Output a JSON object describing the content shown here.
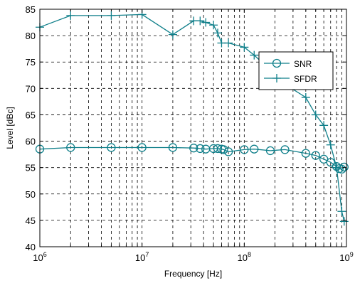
{
  "chart_data": {
    "type": "line",
    "xlabel": "Frequency [Hz]",
    "ylabel": "Level [dBc]",
    "x_scale": "log",
    "xlim": [
      1000000,
      1000000000
    ],
    "ylim": [
      40,
      85
    ],
    "grid": true,
    "legend_position": "top-right",
    "x_ticks": [
      {
        "value": 1000000,
        "base": "10",
        "exp": "6"
      },
      {
        "value": 10000000,
        "base": "10",
        "exp": "7"
      },
      {
        "value": 100000000,
        "base": "10",
        "exp": "8"
      },
      {
        "value": 1000000000,
        "base": "10",
        "exp": "9"
      }
    ],
    "y_ticks": [
      40,
      45,
      50,
      55,
      60,
      65,
      70,
      75,
      80,
      85
    ],
    "series": [
      {
        "name": "SNR",
        "marker": "circle",
        "color": "#0f7f8a",
        "x": [
          1000000,
          2000000,
          5000000,
          10000000,
          20000000,
          32000000,
          37000000,
          42000000,
          50000000,
          55000000,
          60000000,
          63000000,
          70000000,
          100000000,
          125000000,
          180000000,
          250000000,
          400000000,
          500000000,
          600000000,
          700000000,
          800000000,
          850000000,
          900000000,
          950000000
        ],
        "y": [
          58.5,
          58.8,
          58.8,
          58.8,
          58.8,
          58.7,
          58.6,
          58.5,
          58.6,
          58.6,
          58.5,
          58.4,
          58.0,
          58.4,
          58.5,
          58.2,
          58.4,
          57.7,
          57.3,
          56.6,
          56.0,
          55.2,
          54.8,
          54.7,
          55.1
        ]
      },
      {
        "name": "SFDR",
        "marker": "plus",
        "color": "#0f7f8a",
        "x": [
          1000000,
          2000000,
          5000000,
          10000000,
          20000000,
          32000000,
          37000000,
          42000000,
          50000000,
          55000000,
          60000000,
          70000000,
          100000000,
          125000000,
          180000000,
          250000000,
          400000000,
          500000000,
          600000000,
          700000000,
          800000000,
          900000000,
          950000000
        ],
        "y": [
          81.6,
          83.8,
          83.8,
          84.0,
          80.2,
          82.8,
          82.8,
          82.5,
          82.0,
          80.5,
          78.6,
          78.6,
          77.8,
          76.3,
          73.5,
          70.8,
          68.3,
          65.0,
          63.0,
          59.3,
          55.0,
          46.7,
          44.8
        ]
      }
    ]
  }
}
